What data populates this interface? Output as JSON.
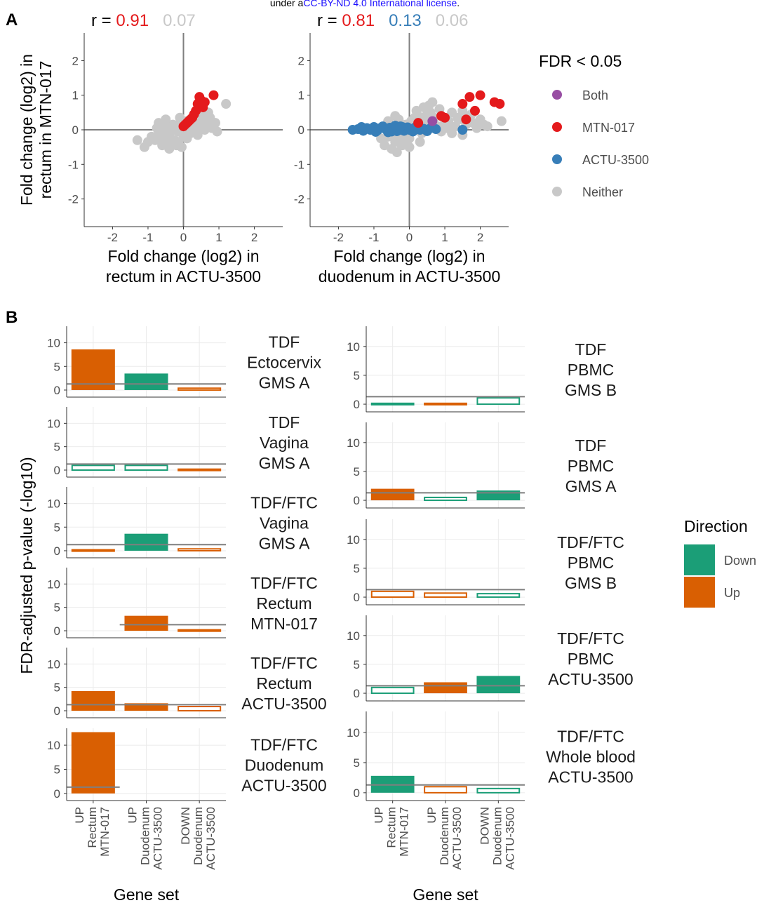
{
  "license_note": {
    "prefix": "under a",
    "link": "CC-BY-ND 4.0 International license",
    "suffix": ".",
    "link_color": "#1a0dff"
  },
  "colors": {
    "both": "#984ea3",
    "mtn": "#e41a1c",
    "actu": "#377eb8",
    "neither": "#c8c8c8",
    "down": "#1b9e77",
    "up": "#d95f02",
    "axis": "#7f7f7f",
    "grid": "#ebebeb"
  },
  "panel_a": {
    "label": "A",
    "legend": {
      "title": "FDR < 0.05",
      "items": [
        {
          "key": "both",
          "label": "Both"
        },
        {
          "key": "mtn",
          "label": "MTN-017"
        },
        {
          "key": "actu",
          "label": "ACTU-3500"
        },
        {
          "key": "neither",
          "label": "Neither"
        }
      ]
    }
  },
  "panel_b": {
    "label": "B",
    "ylabel": "FDR-adjusted p-value (-log10)",
    "xlabel": "Gene set",
    "categories": [
      "UP Rectum MTN-017",
      "UP Duodenum ACTU-3500",
      "DOWN Duodenum ACTU-3500"
    ],
    "tick_lines": [
      [
        "UP",
        "Rectum",
        "MTN-017"
      ],
      [
        "UP",
        "Duodenum",
        "ACTU-3500"
      ],
      [
        "DOWN",
        "Duodenum",
        "ACTU-3500"
      ]
    ],
    "legend": {
      "title": "Direction",
      "items": [
        {
          "key": "down",
          "label": "Down"
        },
        {
          "key": "up",
          "label": "Up"
        }
      ]
    }
  },
  "chart_data": [
    {
      "type": "scatter",
      "title": "",
      "xlabel": "Fold change (log2) in rectum in ACTU-3500",
      "ylabel": "Fold change (log2) in rectum in MTN-017",
      "xlabel_lines": [
        "Fold change (log2) in",
        "rectum in ACTU-3500"
      ],
      "ylabel_lines": [
        "Fold change (log2) in",
        "rectum in MTN-017"
      ],
      "xlim": [
        -2.8,
        2.8
      ],
      "ylim": [
        -2.8,
        2.8
      ],
      "xticks": [
        -2,
        -1,
        0,
        1,
        2
      ],
      "yticks": [
        -2,
        -1,
        0,
        1,
        2
      ],
      "grid": false,
      "correlation": [
        {
          "prefix": "r = ",
          "value": "0.91",
          "key": "mtn"
        },
        {
          "prefix": "",
          "value": "0.07",
          "key": "neither"
        }
      ],
      "series": [
        {
          "key": "neither",
          "x": [
            -1.3,
            -1.1,
            -1.0,
            -0.9,
            -0.8,
            -0.75,
            -0.7,
            -0.6,
            -0.55,
            -0.5,
            -0.45,
            -0.4,
            -0.35,
            -0.3,
            -0.25,
            -0.2,
            -0.15,
            -0.1,
            -0.05,
            0.0,
            0.05,
            0.1,
            0.15,
            0.2,
            0.25,
            0.3,
            0.35,
            0.4,
            0.45,
            0.5,
            0.55,
            0.6,
            0.65,
            0.7,
            0.75,
            0.8,
            0.9,
            1.2,
            0.95,
            -0.6,
            -0.4,
            -0.2,
            0.0,
            0.2,
            0.4,
            0.6,
            -0.5,
            -0.3,
            -0.1,
            0.1,
            0.3,
            0.5,
            -0.7,
            0.7,
            -0.45,
            0.25,
            0.05,
            -0.15,
            0.45,
            0.85
          ],
          "y": [
            -0.3,
            -0.5,
            -0.35,
            -0.2,
            -0.3,
            0.05,
            -0.1,
            -0.45,
            0.1,
            -0.2,
            0.0,
            -0.55,
            -0.05,
            0.15,
            -0.3,
            0.05,
            -0.35,
            0.2,
            -0.5,
            0.0,
            -0.15,
            0.25,
            -0.05,
            0.3,
            0.1,
            0.4,
            0.2,
            0.05,
            0.3,
            0.15,
            0.45,
            0.0,
            0.25,
            0.1,
            0.35,
            0.05,
            0.2,
            0.75,
            -0.05,
            -0.25,
            -0.4,
            -0.45,
            -0.2,
            -0.1,
            -0.15,
            0.4,
            0.3,
            -0.3,
            0.35,
            -0.25,
            0.05,
            0.55,
            0.2,
            0.5,
            -0.1,
            -0.05,
            0.1,
            -0.05,
            0.45,
            0.1
          ]
        },
        {
          "key": "mtn",
          "x": [
            0.45,
            0.5,
            0.85,
            0.4,
            0.35,
            0.6,
            0.3,
            0.2,
            0.1,
            0.05,
            0.25,
            0.55,
            0.15,
            0.0
          ],
          "y": [
            0.95,
            0.85,
            1.0,
            0.75,
            0.55,
            0.8,
            0.45,
            0.3,
            0.2,
            0.15,
            0.35,
            0.65,
            0.25,
            0.1
          ]
        }
      ]
    },
    {
      "type": "scatter",
      "title": "",
      "xlabel": "Fold change (log2) in duodenum in ACTU-3500",
      "ylabel": "",
      "xlabel_lines": [
        "Fold change (log2) in",
        "duodenum in ACTU-3500"
      ],
      "xlim": [
        -2.8,
        2.8
      ],
      "ylim": [
        -2.8,
        2.8
      ],
      "xticks": [
        -2,
        -1,
        0,
        1,
        2
      ],
      "yticks": [
        -2,
        -1,
        0,
        1,
        2
      ],
      "grid": false,
      "correlation": [
        {
          "prefix": "r = ",
          "value": "0.81",
          "key": "mtn"
        },
        {
          "prefix": "",
          "value": "0.13",
          "key": "actu"
        },
        {
          "prefix": "",
          "value": "0.06",
          "key": "neither"
        }
      ],
      "series": [
        {
          "key": "neither",
          "x": [
            -0.8,
            -0.7,
            -0.6,
            -0.5,
            -0.45,
            -0.4,
            -0.35,
            -0.3,
            -0.25,
            -0.2,
            -0.15,
            -0.1,
            -0.05,
            0.0,
            0.05,
            0.1,
            0.15,
            0.2,
            0.25,
            0.3,
            0.35,
            0.4,
            0.45,
            0.5,
            0.6,
            0.7,
            0.8,
            0.9,
            1.0,
            1.1,
            1.2,
            1.3,
            1.4,
            1.5,
            1.6,
            1.7,
            1.8,
            1.9,
            2.0,
            2.1,
            2.2,
            2.6,
            -0.6,
            -0.3,
            0.0,
            0.3,
            0.6,
            0.9,
            1.2,
            1.5,
            -0.4,
            -0.2,
            0.2,
            0.55,
            0.85,
            1.05,
            1.35,
            1.75,
            0.65,
            0.4
          ],
          "y": [
            -0.25,
            -0.45,
            -0.2,
            -0.55,
            -0.1,
            -0.35,
            -0.65,
            -0.15,
            -0.4,
            0.1,
            -0.3,
            0.15,
            -0.2,
            -0.25,
            0.25,
            -0.05,
            0.35,
            0.1,
            0.4,
            0.2,
            -0.1,
            0.3,
            0.05,
            0.45,
            0.15,
            0.35,
            0.1,
            0.4,
            0.2,
            0.25,
            0.5,
            0.1,
            0.3,
            0.55,
            0.15,
            0.4,
            0.2,
            0.05,
            0.3,
            0.15,
            0.1,
            0.25,
            0.25,
            0.3,
            -0.5,
            -0.35,
            0.5,
            -0.05,
            -0.1,
            -0.15,
            0.4,
            -0.45,
            0.55,
            0.7,
            0.6,
            0.05,
            0.35,
            0.45,
            0.8,
            0.65
          ]
        },
        {
          "key": "actu",
          "x": [
            -1.6,
            -1.45,
            -1.3,
            -1.2,
            -1.1,
            -1.0,
            -0.9,
            -0.85,
            -0.75,
            -0.65,
            -0.55,
            -0.5,
            -0.45,
            -0.4,
            -0.35,
            -0.3,
            -0.25,
            -0.2,
            -0.15,
            -0.1,
            -0.05,
            0.0,
            0.05,
            0.1,
            0.15,
            0.3,
            0.4,
            0.5,
            0.6,
            0.75,
            1.5,
            -1.35,
            -0.95,
            -0.6,
            -0.25
          ],
          "y": [
            0.0,
            0.02,
            -0.03,
            0.05,
            0.0,
            0.08,
            -0.02,
            0.04,
            0.1,
            0.0,
            0.06,
            -0.05,
            0.03,
            0.12,
            -0.04,
            0.05,
            0.0,
            0.08,
            -0.03,
            0.04,
            0.07,
            0.0,
            0.02,
            -0.05,
            0.06,
            0.0,
            0.03,
            -0.04,
            0.05,
            0.02,
            0.0,
            0.08,
            -0.06,
            -0.07,
            0.1
          ]
        },
        {
          "key": "mtn",
          "x": [
            1.7,
            2.0,
            2.4,
            1.5,
            2.55,
            1.85,
            0.9,
            1.0,
            1.6,
            0.25
          ],
          "y": [
            0.95,
            1.0,
            0.8,
            0.75,
            0.75,
            0.55,
            0.4,
            0.35,
            0.3,
            0.2
          ]
        },
        {
          "key": "both",
          "x": [
            0.65
          ],
          "y": [
            0.25
          ]
        }
      ]
    },
    {
      "type": "bar",
      "facet": "TDF Ectocervix GMS A",
      "facet_lines": [
        "TDF",
        "Ectocervix",
        "GMS A"
      ],
      "ylim": [
        0,
        13.5
      ],
      "yticks": [
        0,
        5,
        10
      ],
      "threshold": 1.3,
      "categories": [
        "UP Rectum MTN-017",
        "UP Duodenum ACTU-3500",
        "DOWN Duodenum ACTU-3500"
      ],
      "values": [
        8.6,
        3.5,
        0.4
      ],
      "direction": [
        "up",
        "down",
        "up"
      ],
      "significant": [
        true,
        true,
        false
      ]
    },
    {
      "type": "bar",
      "facet": "TDF Vagina GMS A",
      "facet_lines": [
        "TDF",
        "Vagina",
        "GMS A"
      ],
      "ylim": [
        0,
        13.5
      ],
      "yticks": [
        0,
        5,
        10
      ],
      "threshold": 1.3,
      "categories": [
        "UP Rectum MTN-017",
        "UP Duodenum ACTU-3500",
        "DOWN Duodenum ACTU-3500"
      ],
      "values": [
        1.0,
        1.0,
        0.2
      ],
      "direction": [
        "down",
        "down",
        "up"
      ],
      "significant": [
        false,
        false,
        false
      ]
    },
    {
      "type": "bar",
      "facet": "TDF/FTC Vagina GMS A",
      "facet_lines": [
        "TDF/FTC",
        "Vagina",
        "GMS A"
      ],
      "ylim": [
        0,
        13.5
      ],
      "yticks": [
        0,
        5,
        10
      ],
      "threshold": 1.3,
      "categories": [
        "UP Rectum MTN-017",
        "UP Duodenum ACTU-3500",
        "DOWN Duodenum ACTU-3500"
      ],
      "values": [
        0.2,
        3.6,
        0.4
      ],
      "direction": [
        "up",
        "down",
        "up"
      ],
      "significant": [
        false,
        true,
        false
      ]
    },
    {
      "type": "bar",
      "facet": "TDF/FTC Rectum MTN-017",
      "facet_lines": [
        "TDF/FTC",
        "Rectum",
        "MTN-017"
      ],
      "ylim": [
        0,
        13.5
      ],
      "yticks": [
        0,
        5,
        10
      ],
      "threshold": 1.3,
      "categories": [
        "UP Rectum MTN-017",
        "UP Duodenum ACTU-3500",
        "DOWN Duodenum ACTU-3500"
      ],
      "values": [
        null,
        3.2,
        0.2
      ],
      "direction": [
        "up",
        "up",
        "up"
      ],
      "significant": [
        false,
        true,
        false
      ]
    },
    {
      "type": "bar",
      "facet": "TDF/FTC Rectum ACTU-3500",
      "facet_lines": [
        "TDF/FTC",
        "Rectum",
        "ACTU-3500"
      ],
      "ylim": [
        0,
        13.5
      ],
      "yticks": [
        0,
        5,
        10
      ],
      "threshold": 1.3,
      "categories": [
        "UP Rectum MTN-017",
        "UP Duodenum ACTU-3500",
        "DOWN Duodenum ACTU-3500"
      ],
      "values": [
        4.2,
        1.6,
        0.9
      ],
      "direction": [
        "up",
        "up",
        "up"
      ],
      "significant": [
        true,
        true,
        false
      ]
    },
    {
      "type": "bar",
      "facet": "TDF/FTC Duodenum ACTU-3500",
      "facet_lines": [
        "TDF/FTC",
        "Duodenum",
        "ACTU-3500"
      ],
      "ylim": [
        0,
        13.5
      ],
      "yticks": [
        0,
        5,
        10
      ],
      "threshold": 1.3,
      "categories": [
        "UP Rectum MTN-017",
        "UP Duodenum ACTU-3500",
        "DOWN Duodenum ACTU-3500"
      ],
      "values": [
        12.7,
        null,
        null
      ],
      "direction": [
        "up",
        "up",
        "up"
      ],
      "significant": [
        true,
        false,
        false
      ]
    },
    {
      "type": "bar",
      "facet": "TDF PBMC GMS B",
      "facet_lines": [
        "TDF",
        "PBMC",
        "GMS B"
      ],
      "ylim": [
        0,
        13.5
      ],
      "yticks": [
        0,
        5,
        10
      ],
      "threshold": 1.3,
      "categories": [
        "UP Rectum MTN-017",
        "UP Duodenum ACTU-3500",
        "DOWN Duodenum ACTU-3500"
      ],
      "values": [
        0.15,
        0.15,
        1.1
      ],
      "direction": [
        "down",
        "up",
        "down"
      ],
      "significant": [
        false,
        false,
        false
      ]
    },
    {
      "type": "bar",
      "facet": "TDF PBMC GMS A",
      "facet_lines": [
        "TDF",
        "PBMC",
        "GMS A"
      ],
      "ylim": [
        0,
        13.5
      ],
      "yticks": [
        0,
        5,
        10
      ],
      "threshold": 1.3,
      "categories": [
        "UP Rectum MTN-017",
        "UP Duodenum ACTU-3500",
        "DOWN Duodenum ACTU-3500"
      ],
      "values": [
        2.0,
        0.5,
        1.7
      ],
      "direction": [
        "up",
        "down",
        "down"
      ],
      "significant": [
        true,
        false,
        true
      ]
    },
    {
      "type": "bar",
      "facet": "TDF/FTC PBMC GMS B",
      "facet_lines": [
        "TDF/FTC",
        "PBMC",
        "GMS B"
      ],
      "ylim": [
        0,
        13.5
      ],
      "yticks": [
        0,
        5,
        10
      ],
      "threshold": 1.3,
      "categories": [
        "UP Rectum MTN-017",
        "UP Duodenum ACTU-3500",
        "DOWN Duodenum ACTU-3500"
      ],
      "values": [
        1.0,
        0.7,
        0.6
      ],
      "direction": [
        "up",
        "up",
        "down"
      ],
      "significant": [
        false,
        false,
        false
      ]
    },
    {
      "type": "bar",
      "facet": "TDF/FTC PBMC ACTU-3500",
      "facet_lines": [
        "TDF/FTC",
        "PBMC",
        "ACTU-3500"
      ],
      "ylim": [
        0,
        13.5
      ],
      "yticks": [
        0,
        5,
        10
      ],
      "threshold": 1.3,
      "categories": [
        "UP Rectum MTN-017",
        "UP Duodenum ACTU-3500",
        "DOWN Duodenum ACTU-3500"
      ],
      "values": [
        1.0,
        1.9,
        3.0
      ],
      "direction": [
        "down",
        "up",
        "down"
      ],
      "significant": [
        false,
        true,
        true
      ]
    },
    {
      "type": "bar",
      "facet": "TDF/FTC Whole blood ACTU-3500",
      "facet_lines": [
        "TDF/FTC",
        "Whole blood",
        "ACTU-3500"
      ],
      "ylim": [
        0,
        13.5
      ],
      "yticks": [
        0,
        5,
        10
      ],
      "threshold": 1.3,
      "categories": [
        "UP Rectum MTN-017",
        "UP Duodenum ACTU-3500",
        "DOWN Duodenum ACTU-3500"
      ],
      "values": [
        2.8,
        1.0,
        0.7
      ],
      "direction": [
        "down",
        "up",
        "down"
      ],
      "significant": [
        true,
        false,
        false
      ]
    }
  ]
}
